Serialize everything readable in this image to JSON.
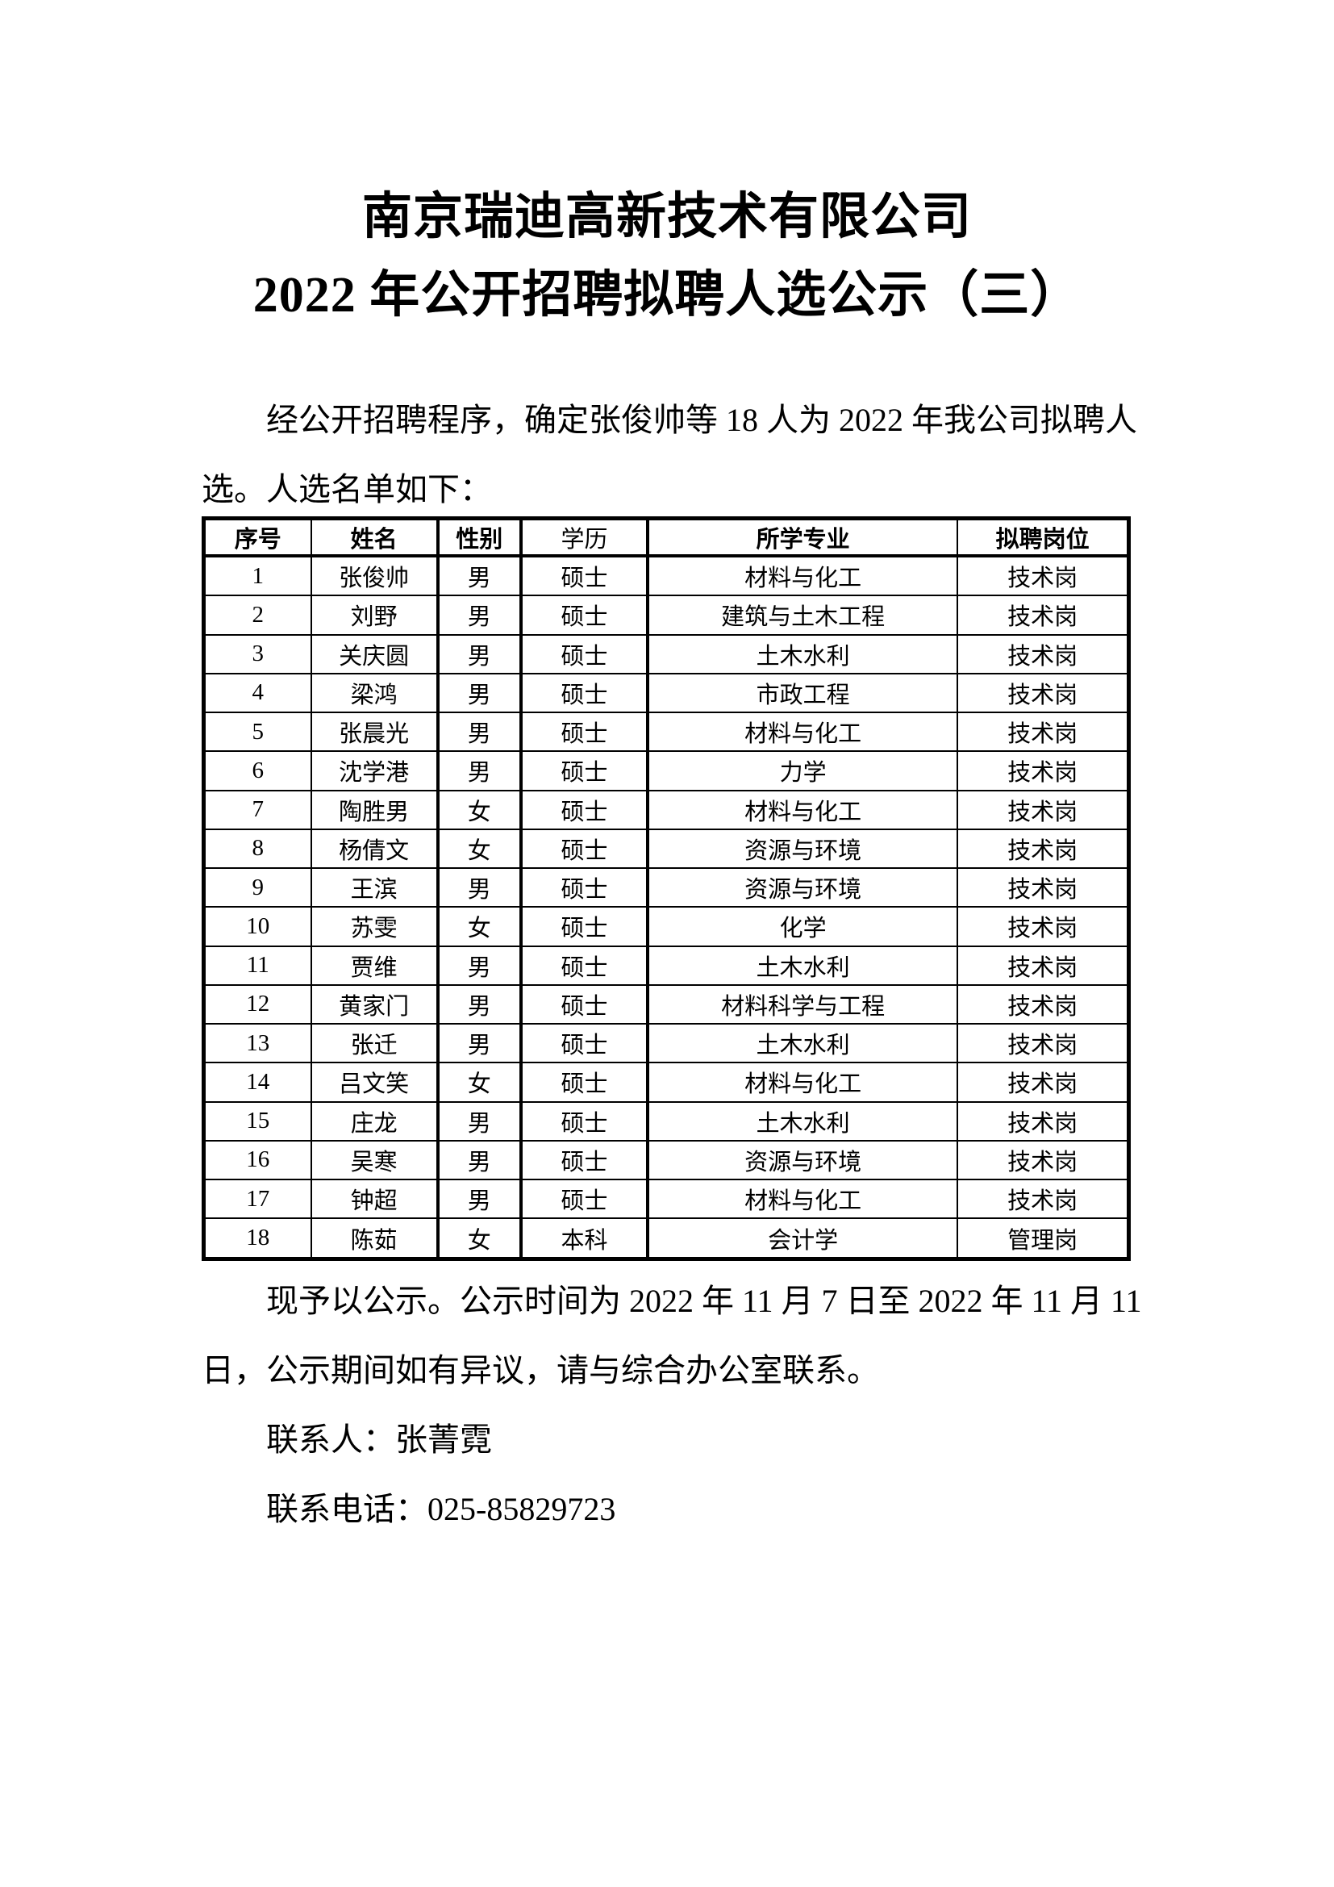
{
  "page": {
    "background_color": "#ffffff",
    "text_color": "#000000"
  },
  "document": {
    "title_line1": "南京瑞迪高新技术有限公司",
    "title_line2": "2022 年公开招聘拟聘人选公示（三）",
    "intro_lines": [
      "经公开招聘程序，确定张俊帅等 18 人为 2022 年我公司拟聘人",
      "选。人选名单如下："
    ],
    "closing_lines": [
      "现予以公示。公示时间为 2022 年 11 月 7 日至 2022 年 11 月 11",
      "日，公示期间如有异议，请与综合办公室联系。"
    ],
    "contact_person": "联系人：张菁霓",
    "contact_phone": "联系电话：025-85829723"
  },
  "table": {
    "headers": [
      "序号",
      "姓名",
      "性别",
      "学历",
      "所学专业",
      "拟聘岗位"
    ],
    "rows": [
      [
        "1",
        "张俊帅",
        "男",
        "硕士",
        "材料与化工",
        "技术岗"
      ],
      [
        "2",
        "刘野",
        "男",
        "硕士",
        "建筑与土木工程",
        "技术岗"
      ],
      [
        "3",
        "关庆圆",
        "男",
        "硕士",
        "土木水利",
        "技术岗"
      ],
      [
        "4",
        "梁鸿",
        "男",
        "硕士",
        "市政工程",
        "技术岗"
      ],
      [
        "5",
        "张晨光",
        "男",
        "硕士",
        "材料与化工",
        "技术岗"
      ],
      [
        "6",
        "沈学港",
        "男",
        "硕士",
        "力学",
        "技术岗"
      ],
      [
        "7",
        "陶胜男",
        "女",
        "硕士",
        "材料与化工",
        "技术岗"
      ],
      [
        "8",
        "杨倩文",
        "女",
        "硕士",
        "资源与环境",
        "技术岗"
      ],
      [
        "9",
        "王滨",
        "男",
        "硕士",
        "资源与环境",
        "技术岗"
      ],
      [
        "10",
        "苏雯",
        "女",
        "硕士",
        "化学",
        "技术岗"
      ],
      [
        "11",
        "贾维",
        "男",
        "硕士",
        "土木水利",
        "技术岗"
      ],
      [
        "12",
        "黄家门",
        "男",
        "硕士",
        "材料科学与工程",
        "技术岗"
      ],
      [
        "13",
        "张迁",
        "男",
        "硕士",
        "土木水利",
        "技术岗"
      ],
      [
        "14",
        "吕文笑",
        "女",
        "硕士",
        "材料与化工",
        "技术岗"
      ],
      [
        "15",
        "庄龙",
        "男",
        "硕士",
        "土木水利",
        "技术岗"
      ],
      [
        "16",
        "吴寒",
        "男",
        "硕士",
        "资源与环境",
        "技术岗"
      ],
      [
        "17",
        "钟超",
        "男",
        "硕士",
        "材料与化工",
        "技术岗"
      ],
      [
        "18",
        "陈茹",
        "女",
        "本科",
        "会计学",
        "管理岗"
      ]
    ]
  }
}
